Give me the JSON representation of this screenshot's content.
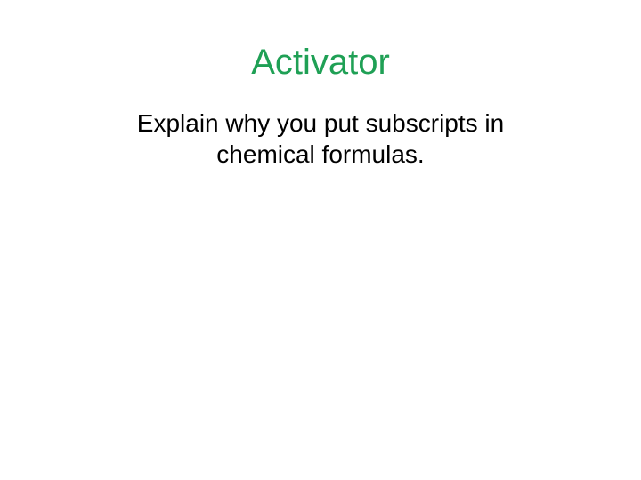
{
  "slide": {
    "title": "Activator",
    "body": "Explain why you put subscripts in chemical formulas.",
    "title_color": "#1fa055",
    "body_color": "#000000",
    "background_color": "#ffffff",
    "title_fontsize": 40,
    "body_fontsize": 28,
    "title_fontweight": 400,
    "body_fontweight": 400,
    "font_family": "Arial, Helvetica, sans-serif",
    "alignment": "center"
  }
}
